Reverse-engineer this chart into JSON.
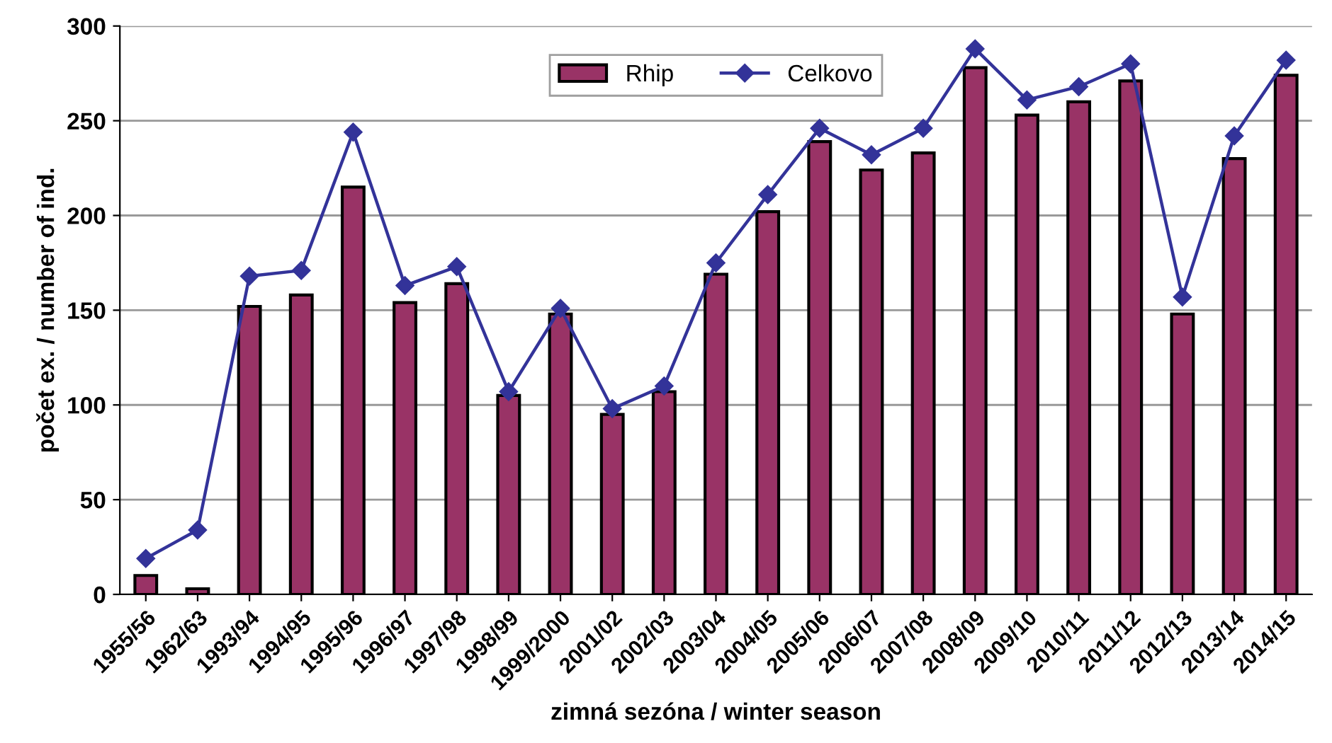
{
  "chart_data": {
    "type": "bar",
    "xlabel": "zimná sezóna / winter season",
    "ylabel": "počet ex. / number of ind.",
    "categories": [
      "1955/56",
      "1962/63",
      "1993/94",
      "1994/95",
      "1995/96",
      "1996/97",
      "1997/98",
      "1998/99",
      "1999/2000",
      "2001/02",
      "2002/03",
      "2003/04",
      "2004/05",
      "2005/06",
      "2006/07",
      "2007/08",
      "2008/09",
      "2009/10",
      "2010/11",
      "2011/12",
      "2012/13",
      "2013/14",
      "2014/15"
    ],
    "series": [
      {
        "name": "Rhip",
        "color": "#993366",
        "values": [
          10,
          3,
          152,
          158,
          215,
          154,
          164,
          105,
          148,
          95,
          107,
          169,
          202,
          239,
          224,
          233,
          278,
          253,
          260,
          271,
          148,
          230,
          274
        ]
      },
      {
        "name": "Celkovo",
        "type": "line",
        "color": "#333399",
        "marker": "diamond",
        "values": [
          19,
          34,
          168,
          171,
          244,
          163,
          173,
          107,
          151,
          98,
          110,
          175,
          211,
          246,
          232,
          246,
          288,
          261,
          268,
          280,
          157,
          242,
          282
        ]
      }
    ],
    "ylim": [
      0,
      300
    ],
    "yticks": [
      0,
      50,
      100,
      150,
      200,
      250,
      300
    ],
    "grid": "y",
    "legend": "top"
  }
}
